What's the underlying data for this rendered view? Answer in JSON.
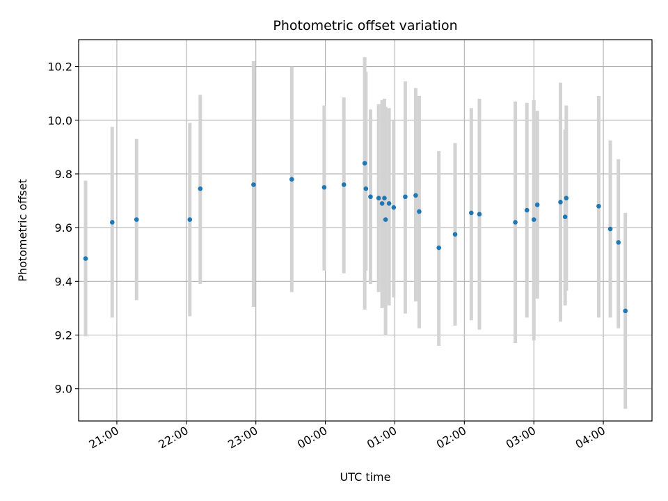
{
  "chart_data": {
    "type": "scatter",
    "title": "Photometric offset variation",
    "xlabel": "UTC time",
    "ylabel": "Photometric offset",
    "x_is_time": true,
    "xlim": [
      "20:27",
      "04:42"
    ],
    "ylim": [
      8.88,
      10.3
    ],
    "grid": true,
    "x_ticks": [
      "21:00",
      "22:00",
      "23:00",
      "00:00",
      "01:00",
      "02:00",
      "03:00",
      "04:00"
    ],
    "y_ticks": [
      "9.0",
      "9.2",
      "9.4",
      "9.6",
      "9.8",
      "10.0",
      "10.2"
    ],
    "colors": {
      "point": "#1f77b4",
      "errorbar": "#d3d3d3",
      "grid": "#b0b0b0"
    },
    "points": [
      {
        "t": "20:33",
        "y": 9.485,
        "ylo": 9.195,
        "yhi": 9.775
      },
      {
        "t": "20:56",
        "y": 9.62,
        "ylo": 9.265,
        "yhi": 9.975
      },
      {
        "t": "21:17",
        "y": 9.63,
        "ylo": 9.33,
        "yhi": 9.93
      },
      {
        "t": "22:03",
        "y": 9.63,
        "ylo": 9.27,
        "yhi": 9.99
      },
      {
        "t": "22:12",
        "y": 9.745,
        "ylo": 9.39,
        "yhi": 10.095
      },
      {
        "t": "22:58",
        "y": 9.76,
        "ylo": 9.305,
        "yhi": 10.22
      },
      {
        "t": "23:31",
        "y": 9.78,
        "ylo": 9.36,
        "yhi": 10.2
      },
      {
        "t": "23:59",
        "y": 9.75,
        "ylo": 9.44,
        "yhi": 10.055
      },
      {
        "t": "00:16",
        "y": 9.76,
        "ylo": 9.43,
        "yhi": 10.085
      },
      {
        "t": "00:34",
        "y": 9.84,
        "ylo": 9.295,
        "yhi": 10.235
      },
      {
        "t": "00:35",
        "y": 9.745,
        "ylo": 9.44,
        "yhi": 10.18
      },
      {
        "t": "00:39",
        "y": 9.715,
        "ylo": 9.39,
        "yhi": 10.04
      },
      {
        "t": "00:46",
        "y": 9.71,
        "ylo": 9.36,
        "yhi": 10.06
      },
      {
        "t": "00:49",
        "y": 9.69,
        "ylo": 9.3,
        "yhi": 10.075
      },
      {
        "t": "00:51",
        "y": 9.71,
        "ylo": 9.31,
        "yhi": 10.08
      },
      {
        "t": "00:52",
        "y": 9.63,
        "ylo": 9.2,
        "yhi": 10.05
      },
      {
        "t": "00:55",
        "y": 9.69,
        "ylo": 9.31,
        "yhi": 10.045
      },
      {
        "t": "00:59",
        "y": 9.675,
        "ylo": 9.34,
        "yhi": 10.0
      },
      {
        "t": "01:09",
        "y": 9.715,
        "ylo": 9.28,
        "yhi": 10.145
      },
      {
        "t": "01:18",
        "y": 9.72,
        "ylo": 9.325,
        "yhi": 10.12
      },
      {
        "t": "01:21",
        "y": 9.66,
        "ylo": 9.225,
        "yhi": 10.09
      },
      {
        "t": "01:38",
        "y": 9.525,
        "ylo": 9.16,
        "yhi": 9.885
      },
      {
        "t": "01:52",
        "y": 9.575,
        "ylo": 9.235,
        "yhi": 9.915
      },
      {
        "t": "02:06",
        "y": 9.655,
        "ylo": 9.255,
        "yhi": 10.045
      },
      {
        "t": "02:13",
        "y": 9.65,
        "ylo": 9.22,
        "yhi": 10.08
      },
      {
        "t": "02:44",
        "y": 9.62,
        "ylo": 9.17,
        "yhi": 10.07
      },
      {
        "t": "02:54",
        "y": 9.665,
        "ylo": 9.265,
        "yhi": 10.065
      },
      {
        "t": "03:00",
        "y": 9.63,
        "ylo": 9.18,
        "yhi": 10.075
      },
      {
        "t": "03:03",
        "y": 9.685,
        "ylo": 9.335,
        "yhi": 10.035
      },
      {
        "t": "03:23",
        "y": 9.695,
        "ylo": 9.25,
        "yhi": 10.14
      },
      {
        "t": "03:27",
        "y": 9.64,
        "ylo": 9.31,
        "yhi": 9.965
      },
      {
        "t": "03:28",
        "y": 9.71,
        "ylo": 9.365,
        "yhi": 10.055
      },
      {
        "t": "03:56",
        "y": 9.68,
        "ylo": 9.265,
        "yhi": 10.09
      },
      {
        "t": "04:06",
        "y": 9.595,
        "ylo": 9.265,
        "yhi": 9.925
      },
      {
        "t": "04:13",
        "y": 9.545,
        "ylo": 9.225,
        "yhi": 9.855
      },
      {
        "t": "04:19",
        "y": 9.29,
        "ylo": 8.925,
        "yhi": 9.655
      }
    ]
  }
}
